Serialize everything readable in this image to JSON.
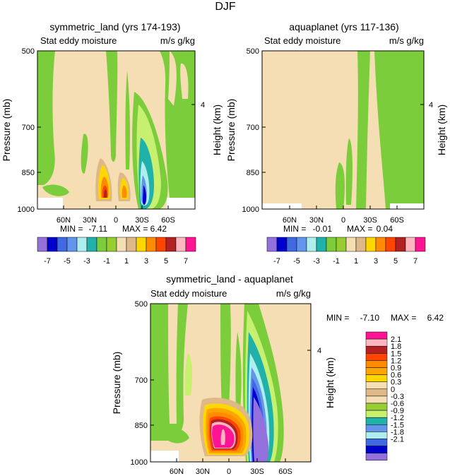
{
  "figure_title": "DJF",
  "panels": {
    "p1": {
      "title": "symmetric_land (yrs 174-193)",
      "left_label": "Stat eddy moisture",
      "right_label": "m/s g/kg",
      "min_label": "MIN =",
      "min_value": "-7.11",
      "max_label": "MAX =",
      "max_value": "6.42"
    },
    "p2": {
      "title": "aquaplanet (yrs 117-136)",
      "left_label": "Stat eddy moisture",
      "right_label": "m/s g/kg",
      "min_label": "MIN =",
      "min_value": "-0.01",
      "max_label": "MAX =",
      "max_value": "0.04"
    },
    "p3": {
      "title": "symmetric_land - aquaplanet",
      "left_label": "Stat eddy moisture",
      "right_label": "m/s g/kg",
      "min_label": "MIN =",
      "min_value": "-7.10",
      "max_label": "MAX =",
      "max_value": "6.42"
    }
  },
  "axes": {
    "ylabel": "Pressure (mb)",
    "ylabel_right": "Height (km)",
    "pressure_ticks": [
      "500",
      "700",
      "850",
      "1000"
    ],
    "height_ticks": [
      "4"
    ],
    "lat_ticks": [
      "60N",
      "30N",
      "0",
      "30S",
      "60S"
    ]
  },
  "colors": {
    "full_palette": [
      "#9370db",
      "#0000cd",
      "#4169e1",
      "#6495ed",
      "#afeeee",
      "#20b2aa",
      "#7ccd3c",
      "#98cd32",
      "#f5deb3",
      "#deb887",
      "#ffd700",
      "#ff8c00",
      "#ff4500",
      "#b22222",
      "#ffb6c1",
      "#ff1493"
    ],
    "diff_palette_top_to_bottom": [
      "#ff1493",
      "#ffb6c1",
      "#b22222",
      "#ff4500",
      "#ff8c00",
      "#ffa500",
      "#ffd700",
      "#f5deb3",
      "#deb887",
      "#f5deb3",
      "#98cd32",
      "#c8f070",
      "#20b2aa",
      "#6495ed",
      "#afeeee",
      "#4169e1",
      "#0000cd",
      "#9370db"
    ]
  },
  "chart_data": [
    {
      "type": "contour",
      "title": "symmetric_land (yrs 174-193)",
      "variable": "Stat eddy moisture",
      "units": "m/s g/kg",
      "x_ticks": [
        "60N",
        "30N",
        "0",
        "30S",
        "60S"
      ],
      "y_ticks": [
        "500",
        "700",
        "850",
        "1000"
      ],
      "ylabel": "Pressure (mb)",
      "ylabel_right": "Height (km)",
      "min": -7.11,
      "max": 6.42
    },
    {
      "type": "contour",
      "title": "aquaplanet (yrs 117-136)",
      "variable": "Stat eddy moisture",
      "units": "m/s g/kg",
      "x_ticks": [
        "60N",
        "30N",
        "0",
        "30S",
        "60S"
      ],
      "y_ticks": [
        "500",
        "700",
        "850",
        "1000"
      ],
      "ylabel": "Pressure (mb)",
      "ylabel_right": "Height (km)",
      "min": -0.01,
      "max": 0.04
    },
    {
      "type": "contour",
      "title": "symmetric_land - aquaplanet",
      "variable": "Stat eddy moisture",
      "units": "m/s g/kg",
      "x_ticks": [
        "60N",
        "30N",
        "0",
        "30S",
        "60S"
      ],
      "y_ticks": [
        "500",
        "700",
        "850",
        "1000"
      ],
      "ylabel": "Pressure (mb)",
      "ylabel_right": "Height (km)",
      "min": -7.1,
      "max": 6.42
    }
  ],
  "colorbar_top": {
    "labels": [
      "-7",
      "-5",
      "-3",
      "-1",
      "1",
      "3",
      "5",
      "7"
    ]
  },
  "colorbar_diff": {
    "labels": [
      "2.1",
      "1.8",
      "1.5",
      "1.2",
      "0.9",
      "0.6",
      "0.3",
      "0",
      "-0.3",
      "-0.6",
      "-0.9",
      "-1.2",
      "-1.5",
      "-1.8",
      "-2.1"
    ]
  }
}
